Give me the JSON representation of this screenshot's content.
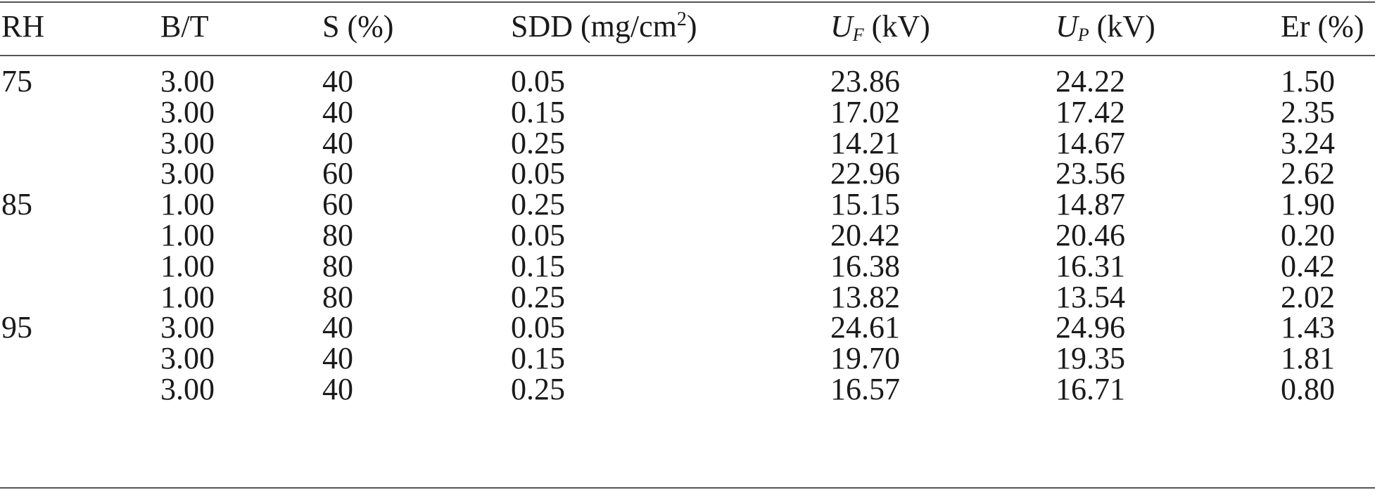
{
  "header": {
    "rh": "RH",
    "bt": "B/T",
    "s": "S (%)",
    "sdd_prefix": "SDD (mg/cm",
    "sdd_sup": "2",
    "sdd_suffix": ")",
    "uf_symbol": "U",
    "uf_sub": "F",
    "uf_unit": " (kV)",
    "up_symbol": "U",
    "up_sub": "P",
    "up_unit": " (kV)",
    "er": "Er (%)"
  },
  "rows": [
    [
      "75",
      "3.00",
      "40",
      "0.05",
      "23.86",
      "24.22",
      "1.50"
    ],
    [
      "",
      "3.00",
      "40",
      "0.15",
      "17.02",
      "17.42",
      "2.35"
    ],
    [
      "",
      "3.00",
      "40",
      "0.25",
      "14.21",
      "14.67",
      "3.24"
    ],
    [
      "",
      "3.00",
      "60",
      "0.05",
      "22.96",
      "23.56",
      "2.62"
    ],
    [
      "85",
      "1.00",
      "60",
      "0.25",
      "15.15",
      "14.87",
      "1.90"
    ],
    [
      "",
      "1.00",
      "80",
      "0.05",
      "20.42",
      "20.46",
      "0.20"
    ],
    [
      "",
      "1.00",
      "80",
      "0.15",
      "16.38",
      "16.31",
      "0.42"
    ],
    [
      "",
      "1.00",
      "80",
      "0.25",
      "13.82",
      "13.54",
      "2.02"
    ],
    [
      "95",
      "3.00",
      "40",
      "0.05",
      "24.61",
      "24.96",
      "1.43"
    ],
    [
      "",
      "3.00",
      "40",
      "0.15",
      "19.70",
      "19.35",
      "1.81"
    ],
    [
      "",
      "3.00",
      "40",
      "0.25",
      "16.57",
      "16.71",
      "0.80"
    ]
  ]
}
